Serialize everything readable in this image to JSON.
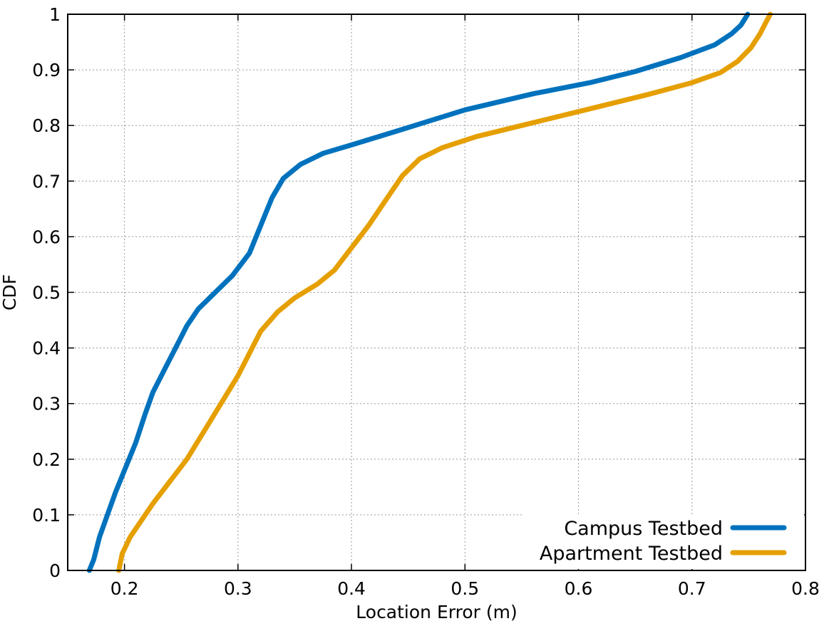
{
  "chart_data": {
    "type": "line",
    "title": "",
    "xlabel": "Location Error (m)",
    "ylabel": "CDF",
    "xlim": [
      0.15,
      0.8
    ],
    "ylim": [
      0,
      1
    ],
    "x_ticks": [
      0.2,
      0.3,
      0.4,
      0.5,
      0.6,
      0.7,
      0.8
    ],
    "x_tick_labels": [
      "0.2",
      "0.3",
      "0.4",
      "0.5",
      "0.6",
      "0.7",
      "0.8"
    ],
    "y_ticks": [
      0,
      0.1,
      0.2,
      0.3,
      0.4,
      0.5,
      0.6,
      0.7,
      0.8,
      0.9,
      1
    ],
    "y_tick_labels": [
      "0",
      "0.1",
      "0.2",
      "0.3",
      "0.4",
      "0.5",
      "0.6",
      "0.7",
      "0.8",
      "0.9",
      "1"
    ],
    "grid": true,
    "legend_position": "bottom-right",
    "series": [
      {
        "name": "Campus Testbed",
        "color": "#0072bd",
        "points": [
          [
            0.169,
            0.0
          ],
          [
            0.173,
            0.02
          ],
          [
            0.178,
            0.06
          ],
          [
            0.185,
            0.1
          ],
          [
            0.192,
            0.14
          ],
          [
            0.2,
            0.18
          ],
          [
            0.21,
            0.23
          ],
          [
            0.218,
            0.28
          ],
          [
            0.225,
            0.32
          ],
          [
            0.235,
            0.36
          ],
          [
            0.245,
            0.4
          ],
          [
            0.255,
            0.44
          ],
          [
            0.265,
            0.47
          ],
          [
            0.28,
            0.5
          ],
          [
            0.295,
            0.53
          ],
          [
            0.31,
            0.57
          ],
          [
            0.32,
            0.62
          ],
          [
            0.33,
            0.67
          ],
          [
            0.34,
            0.705
          ],
          [
            0.355,
            0.73
          ],
          [
            0.375,
            0.75
          ],
          [
            0.4,
            0.765
          ],
          [
            0.44,
            0.79
          ],
          [
            0.5,
            0.828
          ],
          [
            0.56,
            0.857
          ],
          [
            0.61,
            0.877
          ],
          [
            0.65,
            0.897
          ],
          [
            0.69,
            0.922
          ],
          [
            0.72,
            0.945
          ],
          [
            0.735,
            0.965
          ],
          [
            0.743,
            0.98
          ],
          [
            0.747,
            0.993
          ],
          [
            0.749,
            1.0
          ]
        ]
      },
      {
        "name": "Apartment Testbed",
        "color": "#e59f00",
        "points": [
          [
            0.195,
            0.0
          ],
          [
            0.198,
            0.03
          ],
          [
            0.205,
            0.06
          ],
          [
            0.215,
            0.09
          ],
          [
            0.225,
            0.12
          ],
          [
            0.24,
            0.16
          ],
          [
            0.255,
            0.2
          ],
          [
            0.27,
            0.25
          ],
          [
            0.285,
            0.3
          ],
          [
            0.3,
            0.35
          ],
          [
            0.31,
            0.39
          ],
          [
            0.32,
            0.43
          ],
          [
            0.335,
            0.465
          ],
          [
            0.35,
            0.49
          ],
          [
            0.37,
            0.515
          ],
          [
            0.385,
            0.54
          ],
          [
            0.4,
            0.58
          ],
          [
            0.415,
            0.62
          ],
          [
            0.43,
            0.665
          ],
          [
            0.445,
            0.71
          ],
          [
            0.46,
            0.74
          ],
          [
            0.48,
            0.76
          ],
          [
            0.51,
            0.78
          ],
          [
            0.56,
            0.805
          ],
          [
            0.61,
            0.83
          ],
          [
            0.66,
            0.855
          ],
          [
            0.7,
            0.877
          ],
          [
            0.725,
            0.895
          ],
          [
            0.74,
            0.915
          ],
          [
            0.752,
            0.94
          ],
          [
            0.76,
            0.965
          ],
          [
            0.765,
            0.985
          ],
          [
            0.769,
            1.0
          ]
        ]
      }
    ]
  }
}
